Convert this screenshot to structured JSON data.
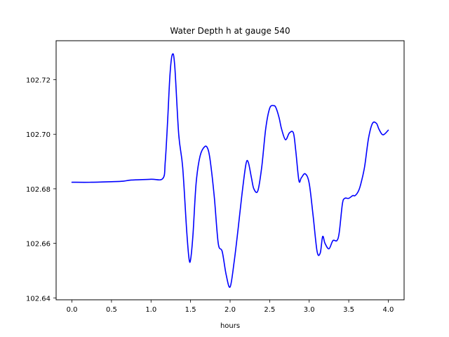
{
  "chart_data": {
    "type": "line",
    "title": "Water Depth h at gauge 540",
    "xlabel": "hours",
    "ylabel": "",
    "xlim": [
      -0.2,
      4.2
    ],
    "ylim": [
      102.6393,
      102.7343
    ],
    "xticks": [
      0.0,
      0.5,
      1.0,
      1.5,
      2.0,
      2.5,
      3.0,
      3.5,
      4.0
    ],
    "xtick_labels": [
      "0.0",
      "0.5",
      "1.0",
      "1.5",
      "2.0",
      "2.5",
      "3.0",
      "3.5",
      "4.0"
    ],
    "yticks": [
      102.64,
      102.66,
      102.68,
      102.7,
      102.72
    ],
    "ytick_labels": [
      "102.64",
      "102.66",
      "102.68",
      "102.70",
      "102.72"
    ],
    "grid": false,
    "legend": "none",
    "series": [
      {
        "color": "#0000ff",
        "x": [
          0.0,
          0.25,
          0.5,
          0.65,
          0.75,
          1.0,
          1.15,
          1.18,
          1.21,
          1.24,
          1.27,
          1.3,
          1.35,
          1.4,
          1.45,
          1.48,
          1.5,
          1.53,
          1.57,
          1.62,
          1.68,
          1.72,
          1.75,
          1.8,
          1.85,
          1.9,
          1.95,
          2.0,
          2.05,
          2.1,
          2.15,
          2.2,
          2.23,
          2.27,
          2.3,
          2.35,
          2.4,
          2.45,
          2.5,
          2.55,
          2.58,
          2.62,
          2.65,
          2.7,
          2.75,
          2.8,
          2.83,
          2.87,
          2.9,
          2.95,
          3.0,
          3.05,
          3.1,
          3.14,
          3.17,
          3.2,
          3.25,
          3.3,
          3.35,
          3.38,
          3.42,
          3.45,
          3.5,
          3.55,
          3.58,
          3.62,
          3.65,
          3.7,
          3.75,
          3.8,
          3.85,
          3.88,
          3.92,
          3.95,
          4.0
        ],
        "y": [
          102.6824,
          102.6824,
          102.6826,
          102.6828,
          102.6832,
          102.6835,
          102.6838,
          102.69,
          102.705,
          102.722,
          102.7293,
          102.725,
          102.7,
          102.688,
          102.665,
          102.6545,
          102.654,
          102.663,
          102.682,
          102.692,
          102.6955,
          102.6945,
          102.69,
          102.677,
          102.66,
          102.657,
          102.6485,
          102.644,
          102.653,
          102.665,
          102.678,
          102.689,
          102.6897,
          102.684,
          102.68,
          102.6792,
          102.688,
          102.702,
          102.7095,
          102.7105,
          102.7097,
          102.706,
          102.702,
          102.698,
          102.7005,
          102.7005,
          102.694,
          102.683,
          102.684,
          102.6855,
          102.682,
          102.67,
          102.657,
          102.6565,
          102.6625,
          102.66,
          102.658,
          102.661,
          102.661,
          102.664,
          102.6745,
          102.6765,
          102.6765,
          102.6775,
          102.6775,
          102.679,
          102.6815,
          102.688,
          102.6985,
          102.704,
          102.704,
          102.702,
          102.7,
          102.7,
          102.7015
        ]
      }
    ]
  }
}
